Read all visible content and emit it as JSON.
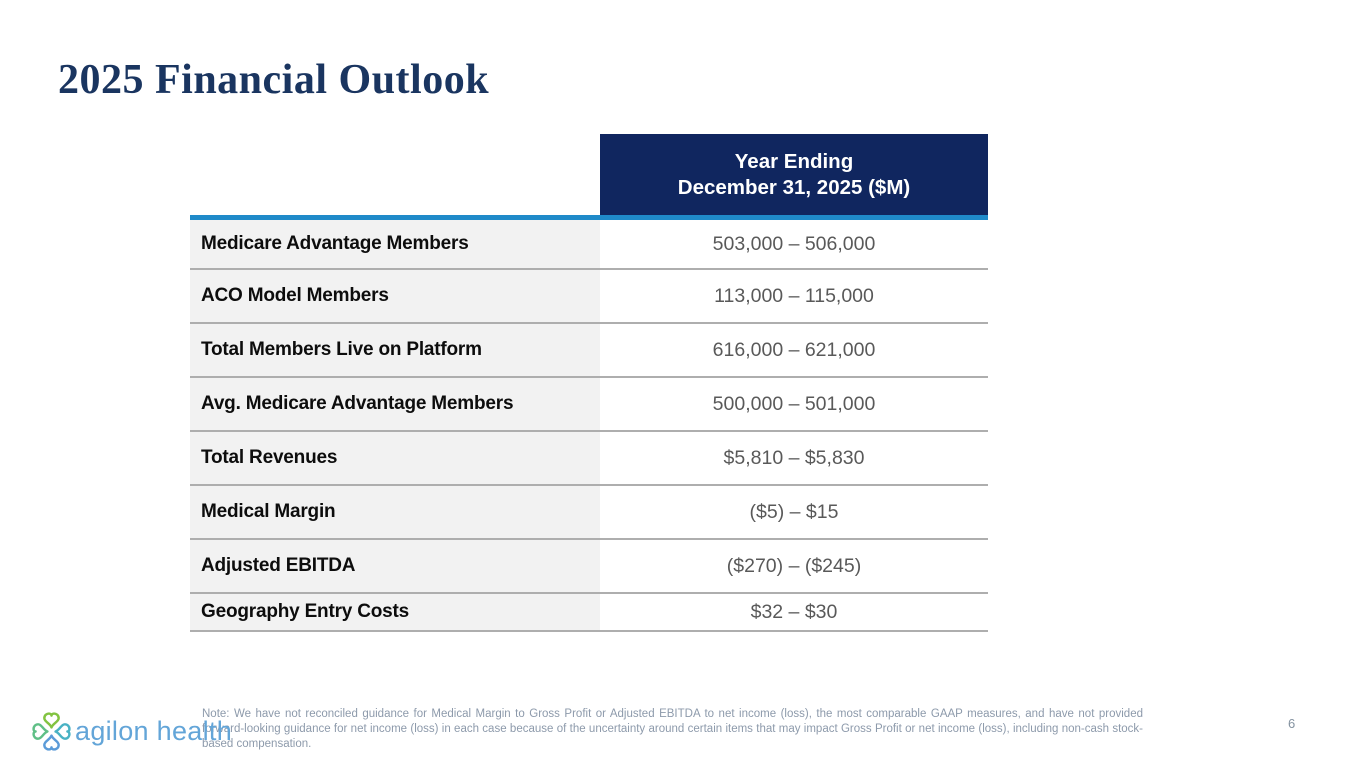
{
  "slide": {
    "title": "2025 Financial Outlook",
    "page_number": "6",
    "note": "Note: We have not reconciled guidance for Medical Margin to Gross Profit or Adjusted EBITDA to net income (loss), the most comparable GAAP measures, and have not provided forward-looking guidance for net income (loss) in each case because of the uncertainty around certain items that may impact Gross Profit or net income (loss), including non-cash stock-based compensation."
  },
  "logo": {
    "text": "agilon health",
    "icon": "four-heart-clover-icon"
  },
  "table": {
    "header": {
      "line1": "Year Ending",
      "line2": "December 31, 2025 ($M)"
    },
    "rows": [
      {
        "label": "Medicare Advantage Members",
        "value": "503,000 – 506,000"
      },
      {
        "label": "ACO Model Members",
        "value": "113,000 – 115,000"
      },
      {
        "label": "Total Members Live on Platform",
        "value": "616,000 – 621,000"
      },
      {
        "label": "Avg. Medicare Advantage Members",
        "value": "500,000 – 501,000"
      },
      {
        "label": "Total Revenues",
        "value": "$5,810 – $5,830"
      },
      {
        "label": "Medical Margin",
        "value": "($5) – $15"
      },
      {
        "label": "Adjusted EBITDA",
        "value": "($270) – ($245)"
      },
      {
        "label": "Geography Entry Costs",
        "value": "$32 – $30"
      }
    ]
  },
  "colors": {
    "title_navy": "#1a3560",
    "header_navy": "#10265f",
    "accent_blue": "#1f8ac9",
    "label_bg_gray": "#f2f2f2",
    "value_text_gray": "#595959",
    "row_separator": "#aeaeae",
    "note_gray_blue": "#8d9aab",
    "logo_blue": "#63a5d8"
  }
}
